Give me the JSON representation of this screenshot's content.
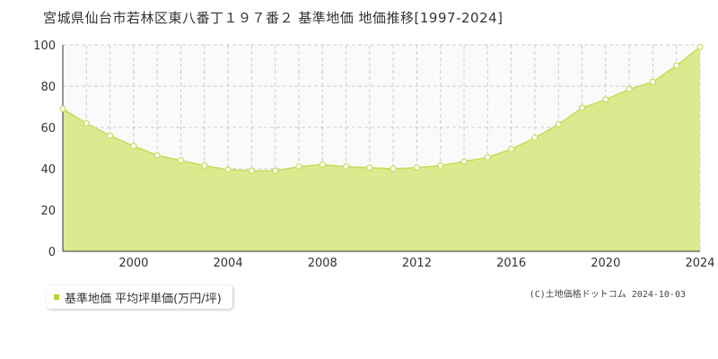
{
  "title": "宮城県仙台市若林区東八番丁１９７番２ 基準地価 地価推移[1997-2024]",
  "legend": {
    "label": "基準地価 平均坪単価(万円/坪)"
  },
  "copyright": "(C)土地価格ドットコム 2024-10-03",
  "colors": {
    "fill": "#dcea8f",
    "line": "#c3dd5a",
    "marker_fill": "#ffffff",
    "grid": "#cccccc",
    "legend_marker": "#b5d341"
  },
  "chart_data": {
    "type": "area",
    "x": [
      1997,
      1998,
      1999,
      2000,
      2001,
      2002,
      2003,
      2004,
      2005,
      2006,
      2007,
      2008,
      2009,
      2010,
      2011,
      2012,
      2013,
      2014,
      2015,
      2016,
      2017,
      2018,
      2019,
      2020,
      2021,
      2022,
      2023,
      2024
    ],
    "series": [
      {
        "name": "基準地価 平均坪単価(万円/坪)",
        "values": [
          69,
          62,
          56,
          51,
          46.5,
          44,
          41.5,
          39.5,
          39,
          39,
          41,
          42,
          41,
          40.5,
          40,
          40.5,
          41.5,
          43.5,
          45.5,
          49.5,
          55,
          61.5,
          69.5,
          73.5,
          78.5,
          82,
          90,
          99
        ]
      }
    ],
    "xticks": [
      "2000",
      "2004",
      "2008",
      "2012",
      "2016",
      "2020",
      "2024"
    ],
    "yticks": [
      "0",
      "20",
      "40",
      "60",
      "80",
      "100"
    ],
    "xlim": [
      1997,
      2024
    ],
    "ylim": [
      0,
      100
    ],
    "grid": true,
    "legend_position": "bottom-left"
  }
}
